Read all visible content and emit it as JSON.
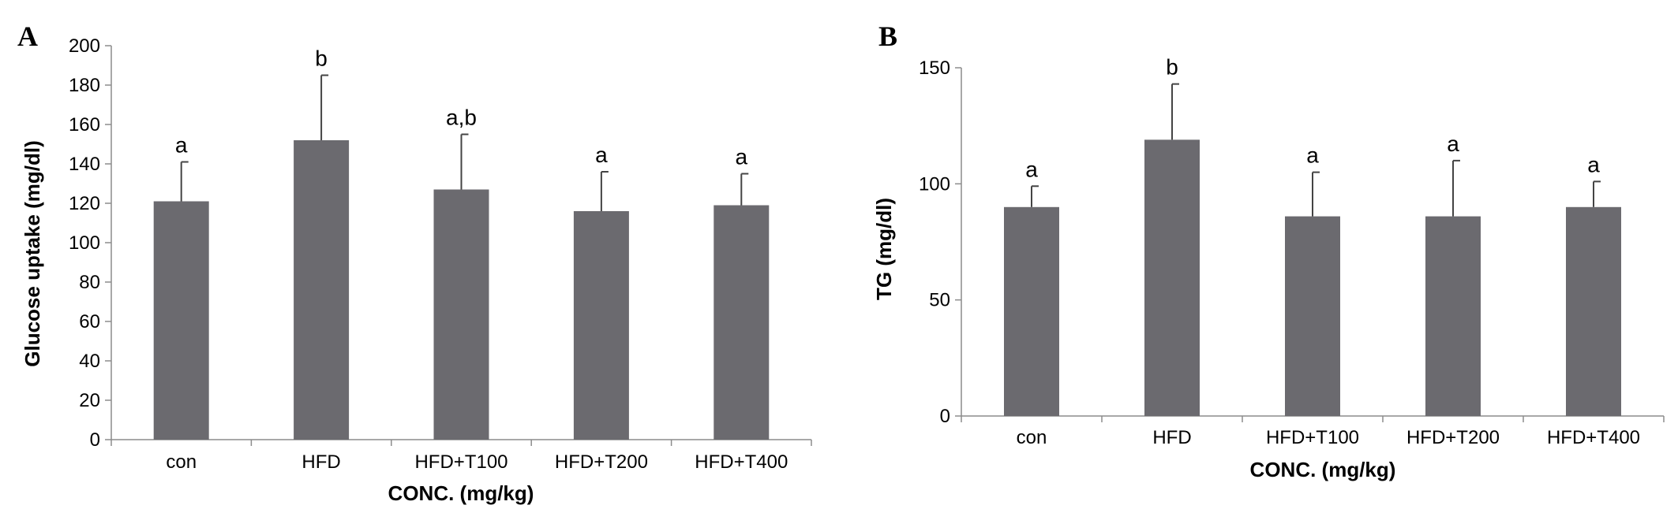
{
  "chart_data": [
    {
      "type": "bar",
      "panel": "A",
      "categories": [
        "con",
        "HFD",
        "HFD+T100",
        "HFD+T200",
        "HFD+T400"
      ],
      "values": [
        121,
        152,
        127,
        116,
        119
      ],
      "errors": [
        20,
        33,
        28,
        20,
        16
      ],
      "labels": [
        "a",
        "b",
        "a,b",
        "a",
        "a"
      ],
      "ylabel": "Glucose uptake (mg/dl)",
      "xlabel": "CONC. (mg/kg)",
      "ylim": [
        0,
        200
      ],
      "yticks": [
        0,
        20,
        40,
        60,
        80,
        100,
        120,
        140,
        160,
        180,
        200
      ],
      "bar_color": "#6b6a6f",
      "grid": false
    },
    {
      "type": "bar",
      "panel": "B",
      "categories": [
        "con",
        "HFD",
        "HFD+T100",
        "HFD+T200",
        "HFD+T400"
      ],
      "values": [
        90,
        119,
        86,
        86,
        90
      ],
      "errors": [
        9,
        24,
        19,
        24,
        11
      ],
      "labels": [
        "a",
        "b",
        "a",
        "a",
        "a"
      ],
      "ylabel": "TG (mg/dl)",
      "xlabel": "CONC. (mg/kg)",
      "ylim": [
        0,
        150
      ],
      "yticks": [
        0,
        50,
        100,
        150
      ],
      "bar_color": "#6b6a6f",
      "grid": false
    }
  ]
}
